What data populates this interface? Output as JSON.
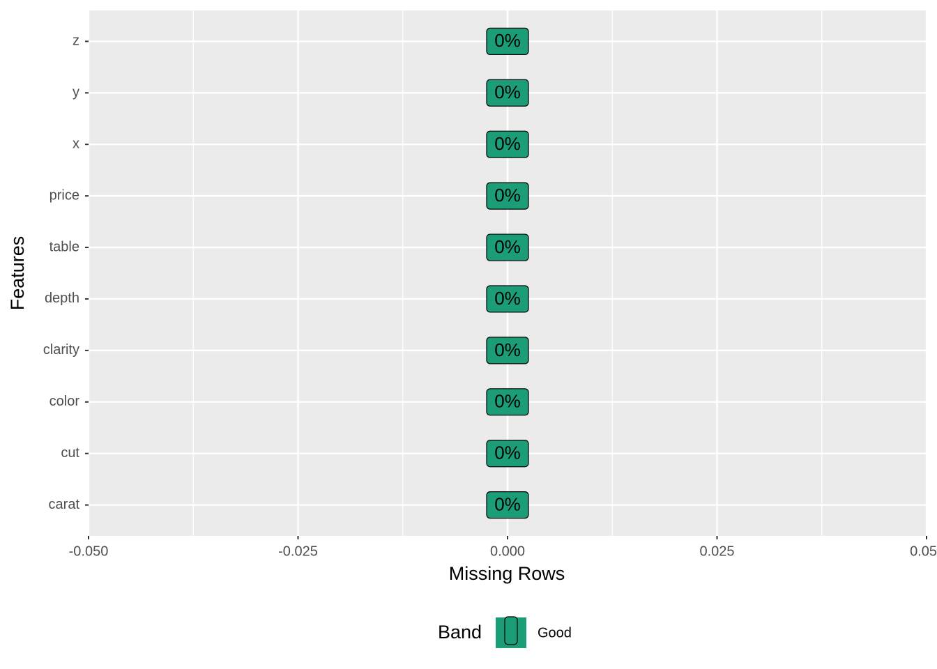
{
  "chart_data": {
    "type": "bar",
    "orientation": "horizontal",
    "x_label": "Missing Rows",
    "y_label": "Features",
    "legend_title": "Band",
    "categories": [
      "carat",
      "cut",
      "color",
      "clarity",
      "depth",
      "table",
      "price",
      "x",
      "y",
      "z"
    ],
    "series": [
      {
        "name": "Good",
        "color": "#1b9e77",
        "values": [
          0,
          0,
          0,
          0,
          0,
          0,
          0,
          0,
          0,
          0
        ],
        "value_labels": [
          "0%",
          "0%",
          "0%",
          "0%",
          "0%",
          "0%",
          "0%",
          "0%",
          "0%",
          "0%"
        ]
      }
    ],
    "xlim": [
      -0.05,
      0.05
    ],
    "xticks": [
      {
        "value": -0.05,
        "label": "-0.050"
      },
      {
        "value": -0.025,
        "label": "-0.025"
      },
      {
        "value": 0,
        "label": "0.000"
      },
      {
        "value": 0.025,
        "label": "0.025"
      },
      0.05
    ],
    "grid": true,
    "legend_position": "bottom"
  }
}
